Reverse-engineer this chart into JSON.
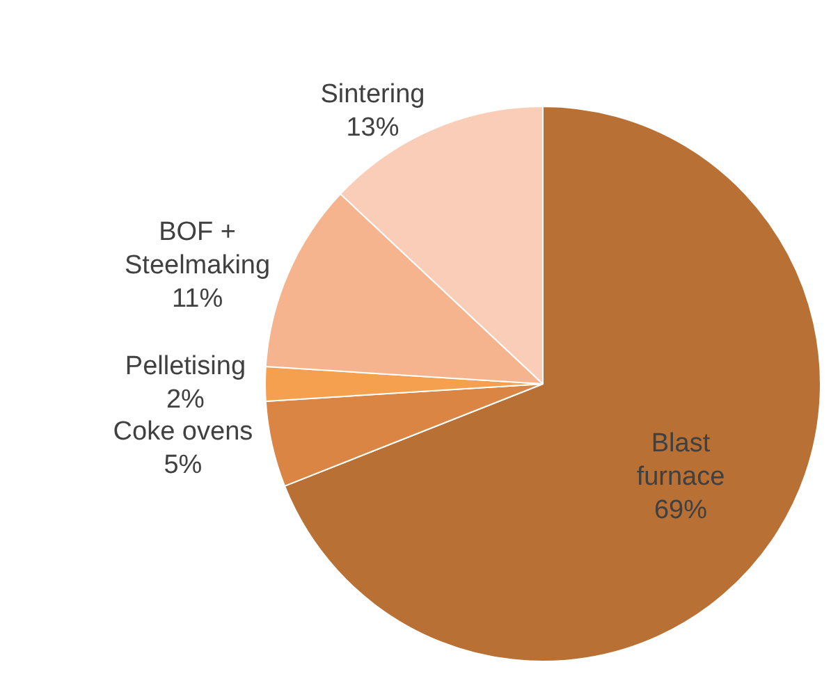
{
  "chart_data": {
    "type": "pie",
    "categories": [
      "Blast furnace",
      "Coke ovens",
      "Pelletising",
      "BOF + Steelmaking",
      "Sintering"
    ],
    "values": [
      69,
      5,
      2,
      11,
      13
    ],
    "colors": [
      "#b87035",
      "#db8545",
      "#f4a04f",
      "#f6b48e",
      "#f9cdb8"
    ],
    "value_labels": [
      "69%",
      "5%",
      "2%",
      "11%",
      "13%"
    ],
    "legend": false
  }
}
